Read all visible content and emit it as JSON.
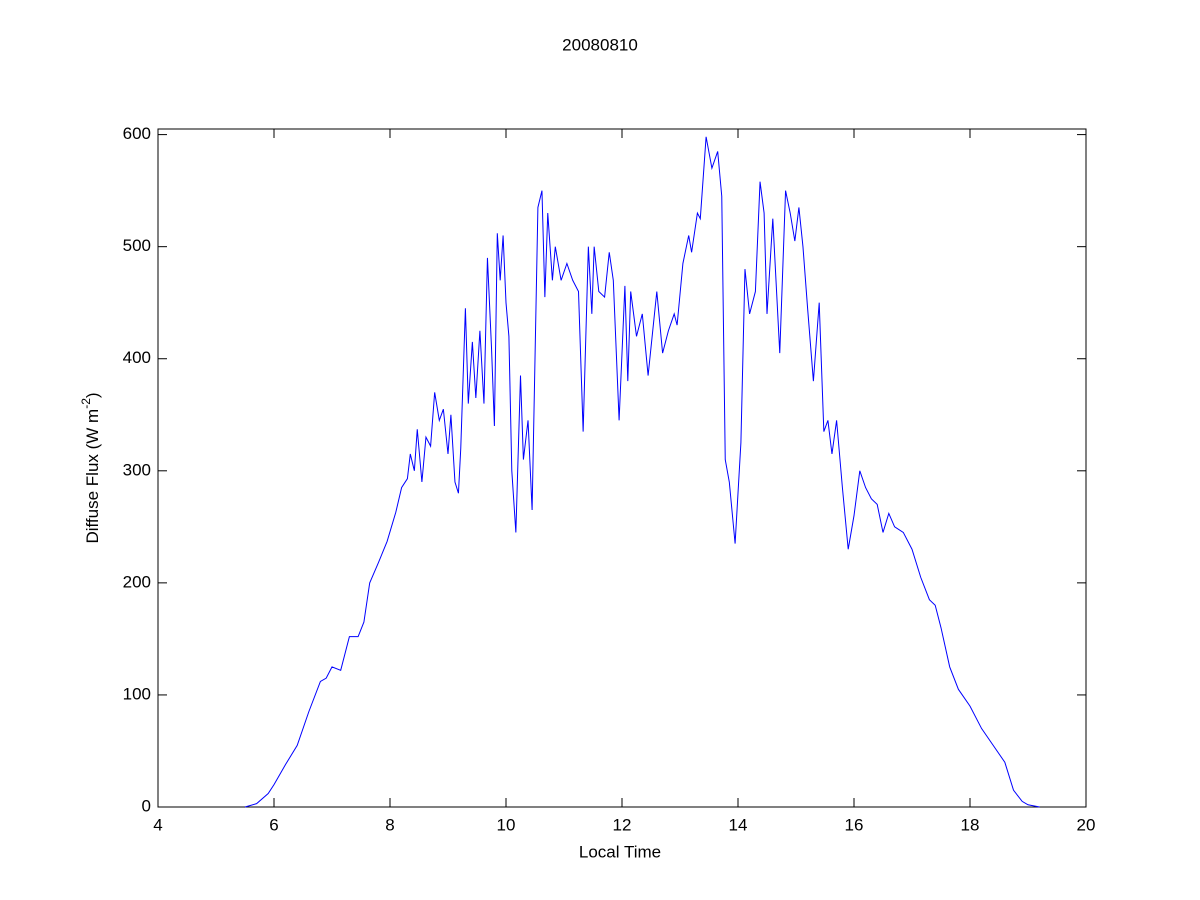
{
  "chart_data": {
    "type": "line",
    "title": "20080810",
    "xlabel": "Local Time",
    "ylabel": [
      "Diffuse Flux (W m",
      "-2",
      ")"
    ],
    "xlim": [
      4,
      20
    ],
    "xticks": [
      4,
      6,
      8,
      10,
      12,
      14,
      16,
      18,
      20
    ],
    "ylim": [
      0,
      605
    ],
    "yticks": [
      0,
      100,
      200,
      300,
      400,
      500,
      600
    ],
    "x": [
      5.5,
      5.7,
      5.9,
      6.0,
      6.2,
      6.4,
      6.6,
      6.8,
      6.9,
      7.0,
      7.15,
      7.3,
      7.45,
      7.55,
      7.65,
      7.8,
      7.95,
      8.1,
      8.2,
      8.3,
      8.35,
      8.42,
      8.47,
      8.55,
      8.62,
      8.7,
      8.77,
      8.85,
      8.92,
      9.0,
      9.05,
      9.12,
      9.18,
      9.22,
      9.3,
      9.35,
      9.42,
      9.48,
      9.55,
      9.62,
      9.68,
      9.75,
      9.8,
      9.85,
      9.9,
      9.95,
      10.0,
      10.05,
      10.1,
      10.17,
      10.25,
      10.3,
      10.38,
      10.45,
      10.55,
      10.62,
      10.67,
      10.72,
      10.8,
      10.85,
      10.95,
      11.05,
      11.15,
      11.25,
      11.33,
      11.42,
      11.48,
      11.52,
      11.6,
      11.7,
      11.78,
      11.85,
      11.95,
      12.05,
      12.1,
      12.15,
      12.25,
      12.35,
      12.45,
      12.52,
      12.6,
      12.7,
      12.8,
      12.9,
      12.95,
      13.05,
      13.15,
      13.2,
      13.3,
      13.35,
      13.45,
      13.55,
      13.65,
      13.72,
      13.78,
      13.85,
      13.95,
      14.05,
      14.12,
      14.2,
      14.3,
      14.38,
      14.45,
      14.5,
      14.6,
      14.72,
      14.82,
      14.9,
      14.98,
      15.05,
      15.12,
      15.2,
      15.3,
      15.4,
      15.48,
      15.55,
      15.62,
      15.7,
      15.8,
      15.9,
      16.0,
      16.1,
      16.2,
      16.3,
      16.4,
      16.5,
      16.6,
      16.7,
      16.85,
      17.0,
      17.15,
      17.3,
      17.4,
      17.5,
      17.65,
      17.8,
      18.0,
      18.2,
      18.4,
      18.6,
      18.75,
      18.9,
      19.0,
      19.2
    ],
    "series": [
      {
        "color": "#0000ff",
        "values": [
          0,
          3,
          12,
          20,
          38,
          55,
          85,
          112,
          115,
          125,
          122,
          152,
          152,
          165,
          200,
          218,
          237,
          263,
          285,
          293,
          315,
          300,
          337,
          290,
          330,
          322,
          370,
          345,
          355,
          315,
          350,
          290,
          280,
          320,
          445,
          360,
          415,
          365,
          425,
          360,
          490,
          410,
          340,
          512,
          470,
          510,
          450,
          420,
          300,
          245,
          385,
          310,
          345,
          265,
          535,
          550,
          455,
          530,
          470,
          500,
          470,
          485,
          470,
          460,
          335,
          500,
          440,
          500,
          460,
          455,
          495,
          470,
          345,
          465,
          380,
          460,
          420,
          440,
          385,
          420,
          460,
          405,
          425,
          440,
          430,
          485,
          510,
          495,
          530,
          525,
          598,
          570,
          585,
          545,
          310,
          290,
          235,
          325,
          480,
          440,
          460,
          558,
          530,
          440,
          525,
          405,
          550,
          530,
          505,
          535,
          500,
          445,
          380,
          450,
          335,
          345,
          315,
          345,
          285,
          230,
          260,
          300,
          285,
          275,
          270,
          245,
          262,
          250,
          245,
          230,
          205,
          185,
          180,
          160,
          125,
          105,
          90,
          70,
          55,
          40,
          15,
          5,
          2,
          0
        ]
      }
    ]
  }
}
